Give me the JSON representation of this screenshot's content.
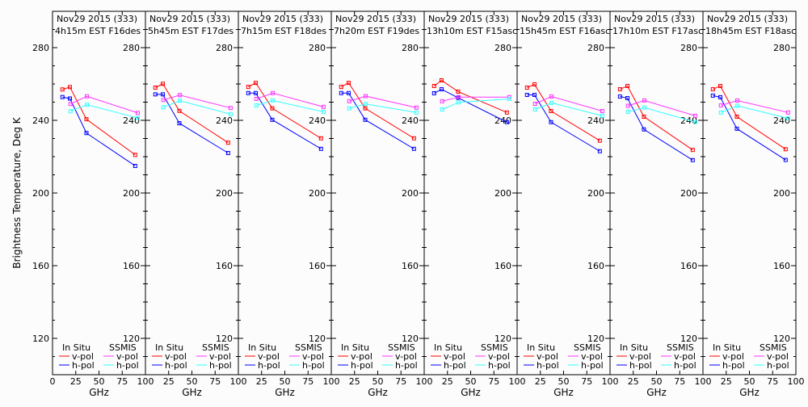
{
  "chart_data": {
    "type": "line",
    "ylabel": "Brightness Temperature, Deg K",
    "xlabel": "GHz",
    "xlim": [
      0,
      100
    ],
    "ylim": [
      100,
      300
    ],
    "x_ticks": [
      0,
      25,
      50,
      75,
      100
    ],
    "y_ticks": [
      120,
      160,
      200,
      240,
      280
    ],
    "grid": false,
    "colors": {
      "insitu_v": "#ff0000",
      "insitu_h": "#0000ff",
      "ssmis_v": "#ff33ff",
      "ssmis_h": "#33ffff"
    },
    "legend": {
      "insitu_title": "In Situ",
      "ssmis_title": "SSMIS",
      "v_label": "v-pol",
      "h_label": "h-pol",
      "placement": "bottom"
    },
    "insitu_freqs": [
      10.7,
      18.7,
      36.5,
      89
    ],
    "ssmis_freqs": [
      19.35,
      37,
      91.655
    ],
    "panels": [
      {
        "title1": "Nov29 2015 (333)",
        "title2": "4h15m EST F16des",
        "insitu_v": [
          257.0,
          258.3,
          240.6,
          221.0
        ],
        "insitu_h": [
          252.8,
          252.0,
          233.0,
          214.9
        ],
        "ssmis_v": [
          249.0,
          253.2,
          244.1
        ],
        "ssmis_h": [
          245.0,
          248.6,
          241.3
        ]
      },
      {
        "title1": "Nov29 2015 (333)",
        "title2": "5h45m EST F17des",
        "insitu_v": [
          258.0,
          260.1,
          245.2,
          227.7
        ],
        "insitu_h": [
          254.3,
          254.3,
          238.4,
          222.0
        ],
        "ssmis_v": [
          251.2,
          253.9,
          246.8
        ],
        "ssmis_h": [
          247.2,
          250.8,
          243.4
        ]
      },
      {
        "title1": "Nov29 2015 (333)",
        "title2": "7h15m EST F18des",
        "insitu_v": [
          258.4,
          260.6,
          246.6,
          230.1
        ],
        "insitu_h": [
          255.0,
          255.0,
          240.3,
          224.3
        ],
        "ssmis_v": [
          251.8,
          255.0,
          247.4
        ],
        "ssmis_h": [
          248.2,
          250.9,
          244.7
        ]
      },
      {
        "title1": "Nov29 2015 (333)",
        "title2": "7h20m EST F19des",
        "insitu_v": [
          258.4,
          260.6,
          246.6,
          230.1
        ],
        "insitu_h": [
          255.0,
          255.0,
          240.3,
          224.3
        ],
        "ssmis_v": [
          250.5,
          253.3,
          247.0
        ],
        "ssmis_h": [
          246.6,
          249.0,
          244.3
        ]
      },
      {
        "title1": "Nov29 2015 (333)",
        "title2": "13h10m EST F15asc",
        "insitu_v": [
          258.9,
          262.0,
          255.8,
          244.3
        ],
        "insitu_h": [
          254.9,
          257.1,
          252.4,
          239.0
        ],
        "ssmis_v": [
          250.5,
          252.8,
          252.8
        ],
        "ssmis_h": [
          246.0,
          249.9,
          251.8
        ]
      },
      {
        "title1": "Nov29 2015 (333)",
        "title2": "15h45m EST F16asc",
        "insitu_v": [
          258.0,
          259.8,
          245.1,
          228.8
        ],
        "insitu_h": [
          254.0,
          254.0,
          239.0,
          223.0
        ],
        "ssmis_v": [
          249.1,
          253.1,
          245.1
        ],
        "ssmis_h": [
          246.0,
          249.6,
          242.5
        ]
      },
      {
        "title1": "Nov29 2015 (333)",
        "title2": "17h10m EST F17asc",
        "insitu_v": [
          257.1,
          258.9,
          242.0,
          223.7
        ],
        "insitu_h": [
          253.1,
          252.2,
          235.0,
          218.1
        ],
        "ssmis_v": [
          248.0,
          250.9,
          242.5
        ],
        "ssmis_h": [
          244.7,
          247.0,
          239.0
        ]
      },
      {
        "title1": "Nov29 2015 (333)",
        "title2": "18h45m EST F18asc",
        "insitu_v": [
          257.1,
          258.9,
          242.0,
          224.1
        ],
        "insitu_h": [
          253.6,
          252.7,
          235.4,
          218.2
        ],
        "ssmis_v": [
          248.2,
          250.9,
          244.3
        ],
        "ssmis_h": [
          244.3,
          248.0,
          241.1
        ]
      }
    ]
  }
}
